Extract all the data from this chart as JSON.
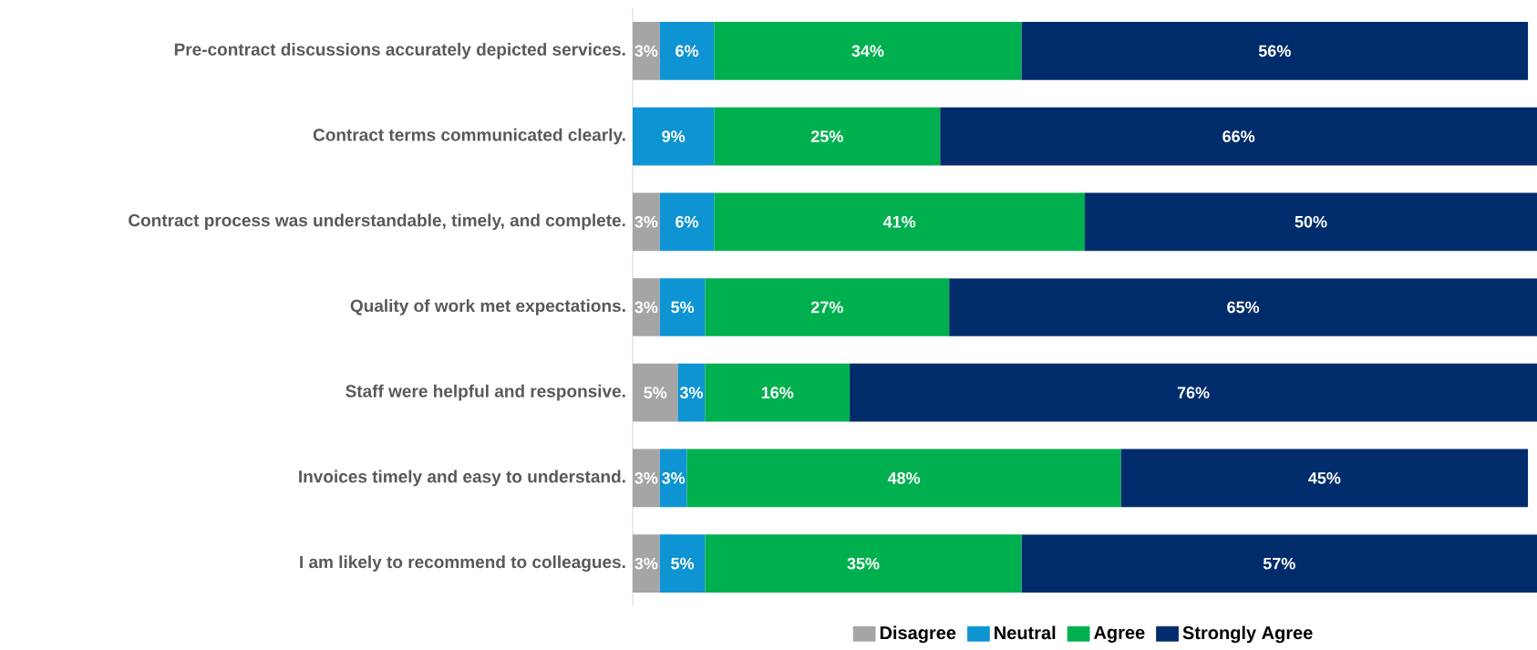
{
  "chart_data": {
    "type": "bar",
    "orientation": "horizontal",
    "stacked": true,
    "legend": "bottom",
    "categories": [
      "Pre-contract discussions accurately depicted services.",
      "Contract terms communicated clearly.",
      "Contract process was understandable, timely, and complete.",
      "Quality of work met expectations.",
      "Staff were helpful and responsive.",
      "Invoices timely and easy to understand.",
      "I am likely to recommend to colleagues."
    ],
    "xlim": [
      0,
      100
    ],
    "series": [
      {
        "name": "Disagree",
        "color": "#a5a5a5",
        "values": [
          3,
          null,
          3,
          3,
          5,
          3,
          3
        ],
        "value_labels": [
          "3%",
          null,
          "3%",
          "3%",
          "5%",
          "3%",
          "3%"
        ]
      },
      {
        "name": "Neutral",
        "color": "#0e94d2",
        "values": [
          6,
          9,
          6,
          5,
          3,
          3,
          5
        ],
        "value_labels": [
          "6%",
          "9%",
          "6%",
          "5%",
          "3%",
          "3%",
          "5%"
        ]
      },
      {
        "name": "Agree",
        "color": "#00b04f",
        "values": [
          34,
          25,
          41,
          27,
          16,
          48,
          35
        ],
        "value_labels": [
          "34%",
          "25%",
          "41%",
          "27%",
          "16%",
          "48%",
          "35%"
        ]
      },
      {
        "name": "Strongly Agree",
        "color": "#002c6b",
        "values": [
          56,
          66,
          50,
          65,
          76,
          45,
          57
        ],
        "value_labels": [
          "56%",
          "66%",
          "50%",
          "65%",
          "76%",
          "45%",
          "57%"
        ]
      }
    ]
  }
}
